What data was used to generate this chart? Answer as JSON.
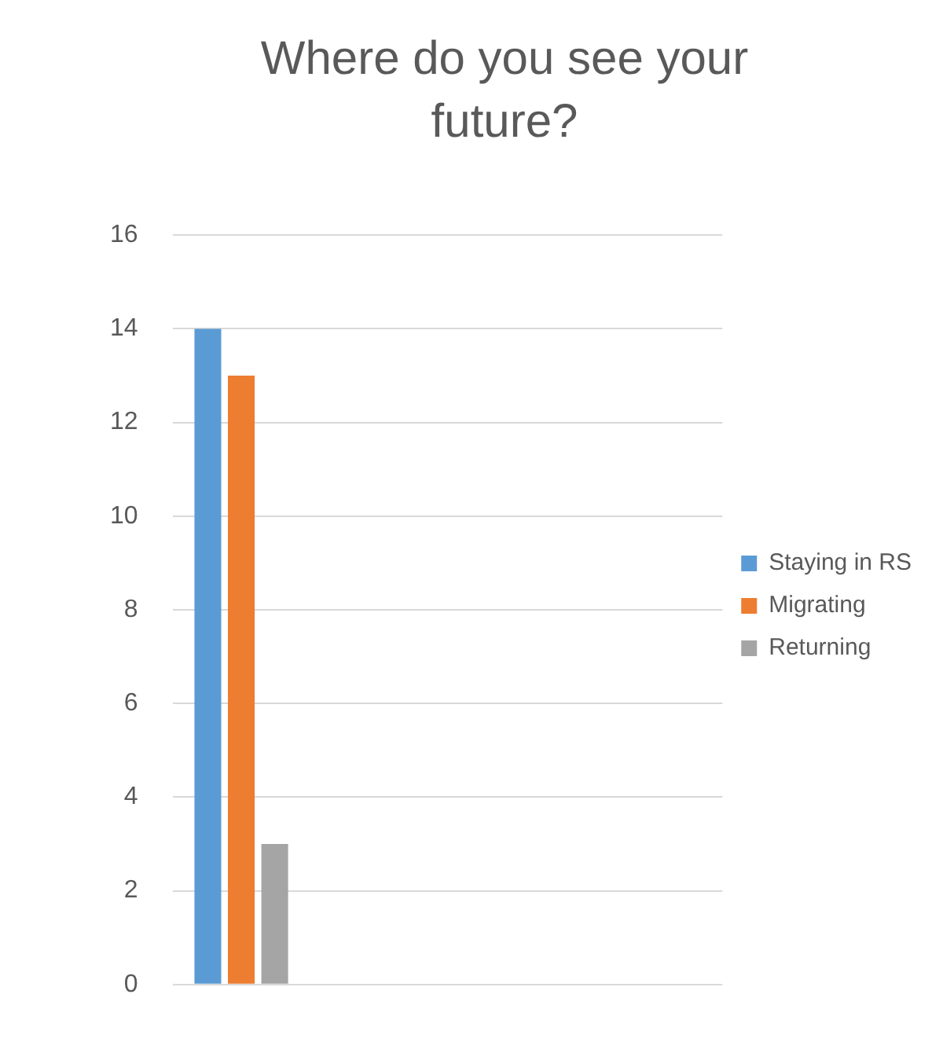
{
  "chart_data": {
    "type": "bar",
    "title": "Where do you see your future?",
    "categories": [
      null,
      null,
      null,
      null
    ],
    "series": [
      {
        "name": "Staying in RS",
        "color": "#5b9bd5",
        "values": [
          14,
          null,
          null,
          null
        ]
      },
      {
        "name": "Migrating",
        "color": "#ed7d31",
        "values": [
          13,
          null,
          null,
          null
        ]
      },
      {
        "name": "Returning",
        "color": "#a5a5a5",
        "values": [
          3,
          null,
          null,
          null
        ]
      }
    ],
    "ylim": [
      0,
      16
    ],
    "yticks": [
      0,
      2,
      4,
      6,
      8,
      10,
      12,
      14,
      16
    ],
    "grid": "y",
    "legend": "right"
  }
}
